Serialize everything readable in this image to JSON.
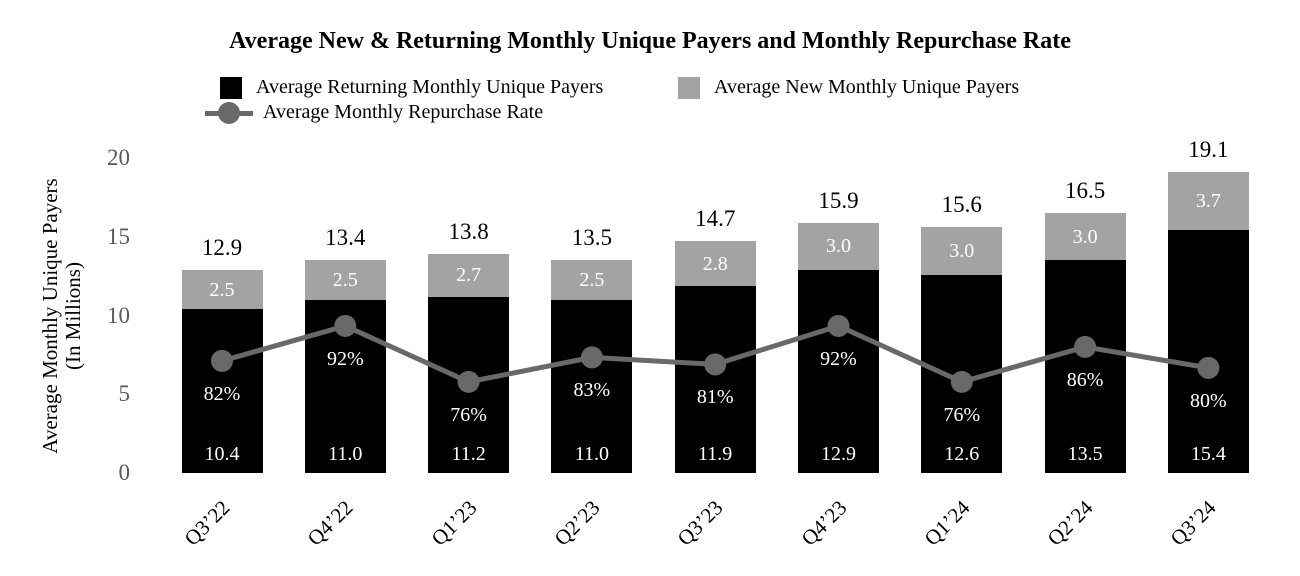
{
  "title": "Average New & Returning Monthly Unique Payers and Monthly Repurchase Rate",
  "legend": {
    "returning": "Average Returning Monthly Unique Payers",
    "new": "Average New Monthly Unique Payers",
    "rate": "Average Monthly Repurchase Rate"
  },
  "y_axis": {
    "title_line1": "Average Monthly Unique Payers",
    "title_line2": "(In Millions)",
    "ticks": [
      20,
      15,
      10,
      5,
      0
    ]
  },
  "colors": {
    "returning_bar": "#000000",
    "new_bar": "#A3A3A3",
    "rate_line": "#696969",
    "tick_label": "#595959",
    "bar_value_label": "#FFFFFF",
    "total_label": "#000000"
  },
  "chart_data": {
    "type": "bar",
    "subtype": "stacked-bars-with-line-overlay",
    "title": "Average New & Returning Monthly Unique Payers and Monthly Repurchase Rate",
    "categories": [
      "Q3’22",
      "Q4’22",
      "Q1’23",
      "Q2’23",
      "Q3’23",
      "Q4’23",
      "Q1’24",
      "Q2’24",
      "Q3’24"
    ],
    "series": [
      {
        "name": "Average Returning Monthly Unique Payers",
        "type": "bar",
        "color": "#000000",
        "values": [
          10.4,
          11.0,
          11.2,
          11.0,
          11.9,
          12.9,
          12.6,
          13.5,
          15.4
        ]
      },
      {
        "name": "Average New Monthly Unique Payers",
        "type": "bar",
        "color": "#A3A3A3",
        "values": [
          2.5,
          2.5,
          2.7,
          2.5,
          2.8,
          3.0,
          3.0,
          3.0,
          3.7
        ]
      },
      {
        "name": "Average Monthly Repurchase Rate",
        "type": "line",
        "color": "#696969",
        "unit": "%",
        "values": [
          82,
          92,
          76,
          83,
          81,
          92,
          76,
          86,
          80
        ]
      }
    ],
    "totals": [
      12.9,
      13.4,
      13.8,
      13.5,
      14.7,
      15.9,
      15.6,
      16.5,
      19.1
    ],
    "ylabel": "Average Monthly Unique Payers (In Millions)",
    "ylim": [
      0,
      20
    ],
    "grid": false,
    "legend_position": "top"
  }
}
